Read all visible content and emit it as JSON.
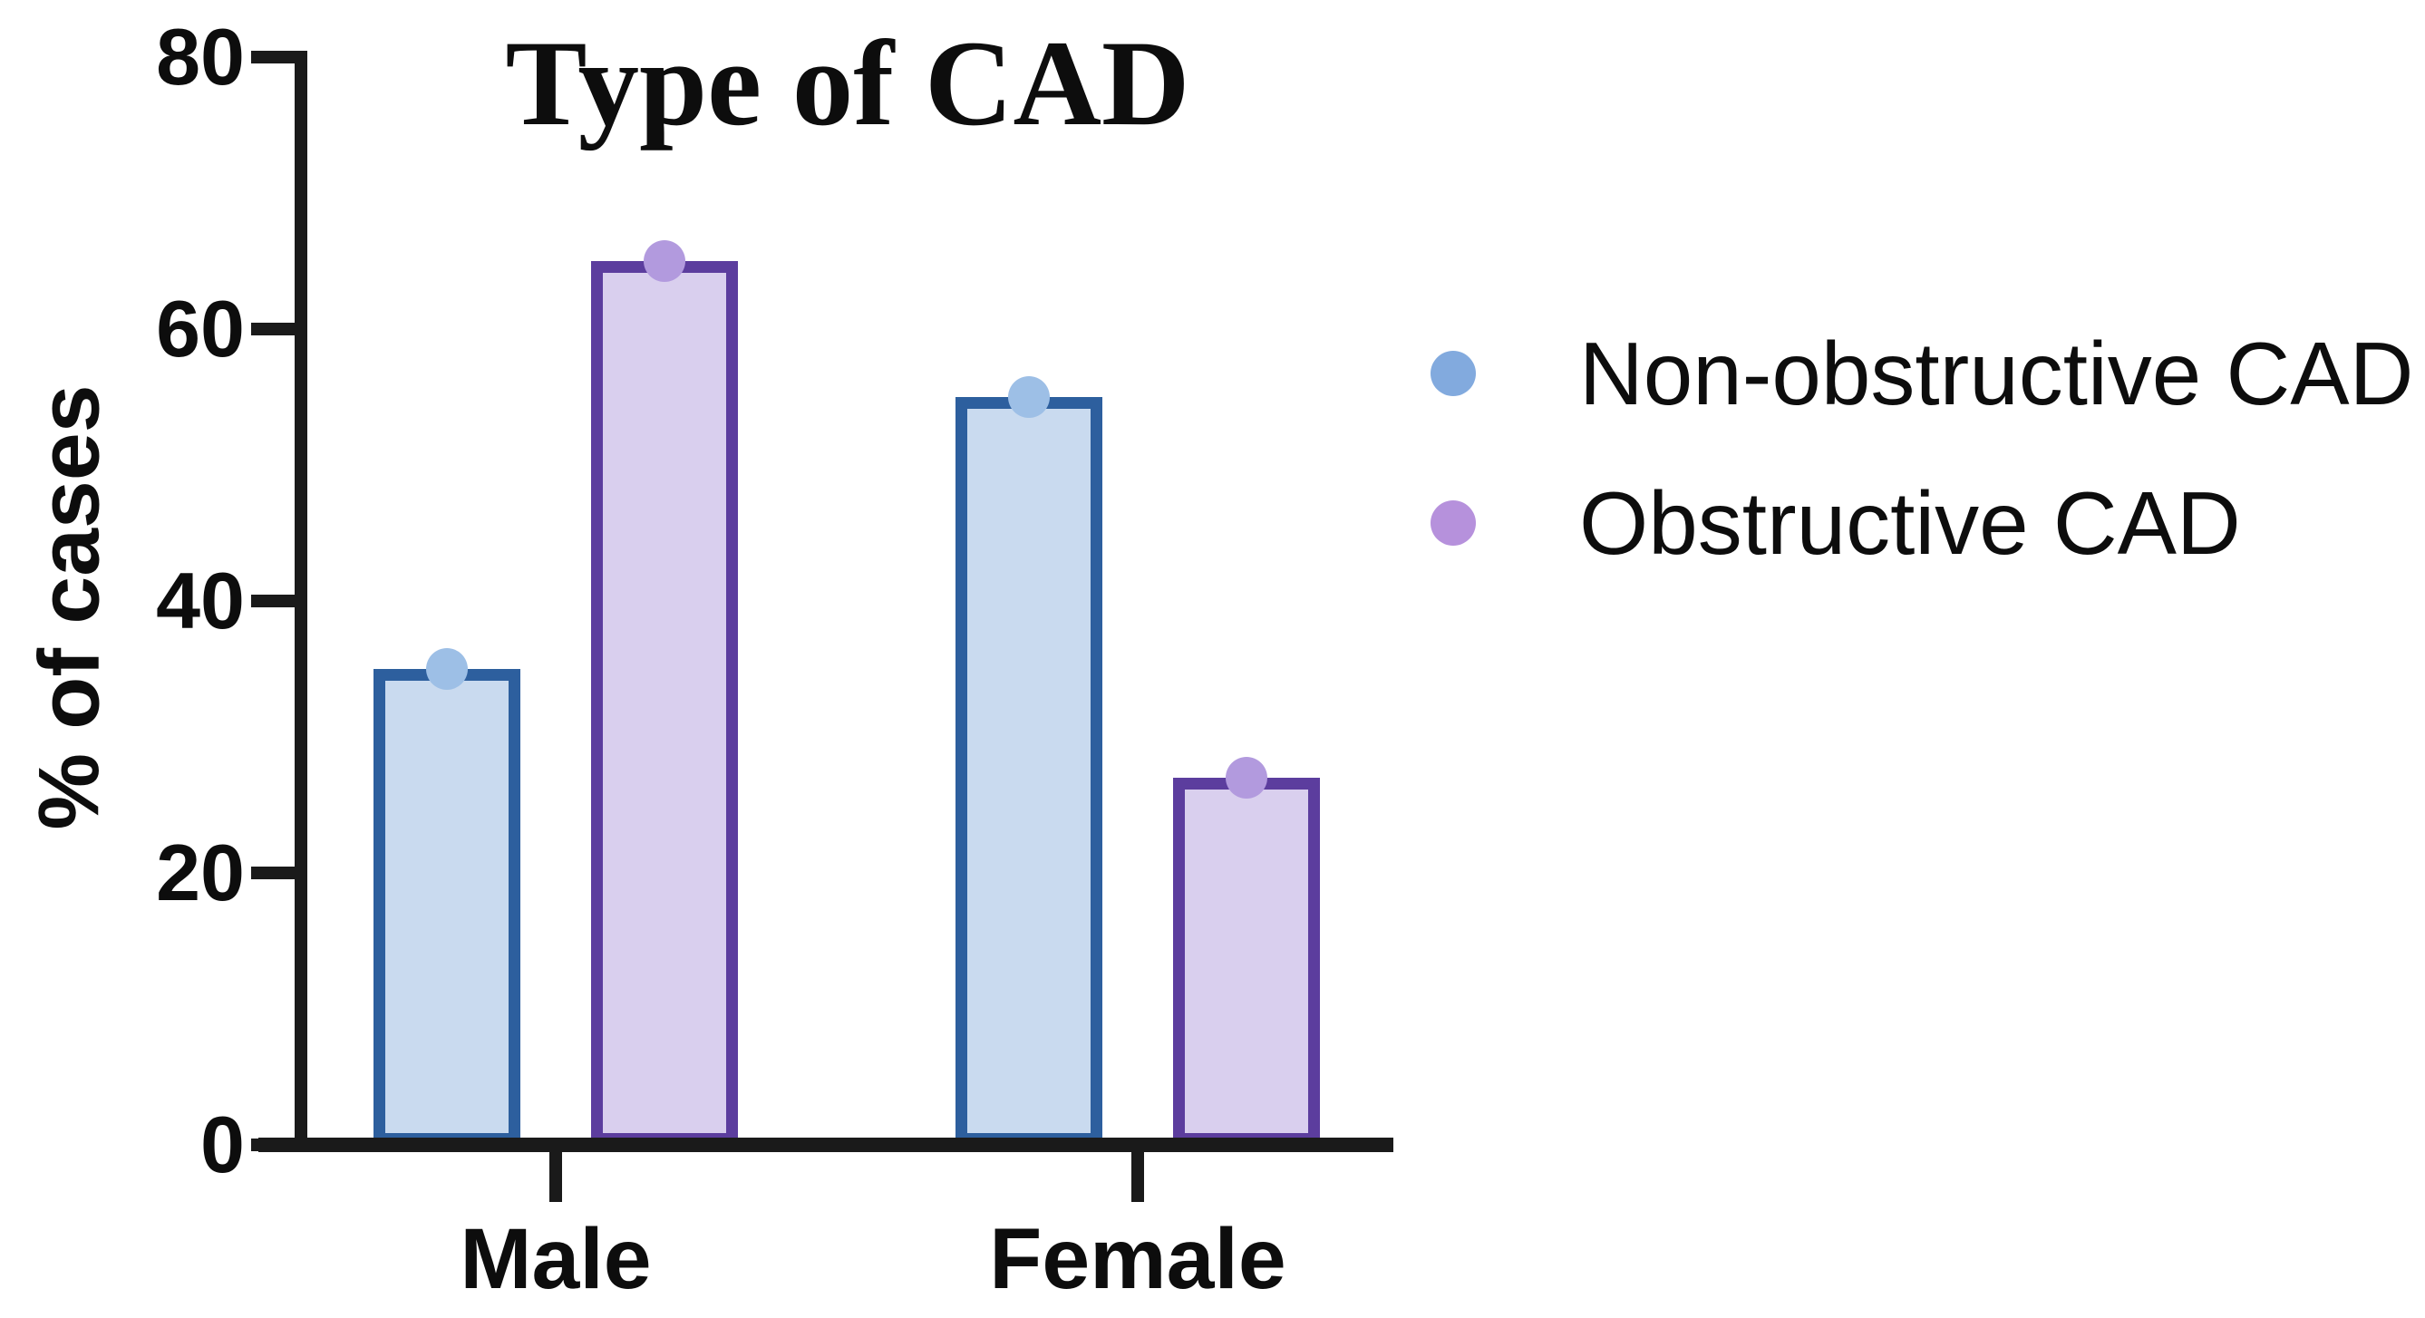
{
  "chart_data": {
    "type": "bar",
    "title": "Type of CAD",
    "ylabel": "% of cases",
    "xlabel": "",
    "categories": [
      "Male",
      "Female"
    ],
    "series": [
      {
        "name": "Non-obstructive CAD",
        "values": [
          35,
          55
        ],
        "fill_color": "#c9daef",
        "border_color": "#2d5f9e",
        "marker_color": "#9dbfe6",
        "legend_dot_color": "#82aade"
      },
      {
        "name": "Obstructive CAD",
        "values": [
          65,
          27
        ],
        "fill_color": "#d9cfee",
        "border_color": "#5c3d9e",
        "marker_color": "#b29ade",
        "legend_dot_color": "#b691dc"
      }
    ],
    "ylim": [
      0,
      80
    ],
    "yticks": [
      0,
      20,
      40,
      60,
      80
    ],
    "ytick_labels": [
      "0",
      "20",
      "40",
      "60",
      "80"
    ],
    "grid": false,
    "legend_position": "right",
    "axis_color": "#1a1a1a",
    "text_color": "#0d0d0d"
  }
}
